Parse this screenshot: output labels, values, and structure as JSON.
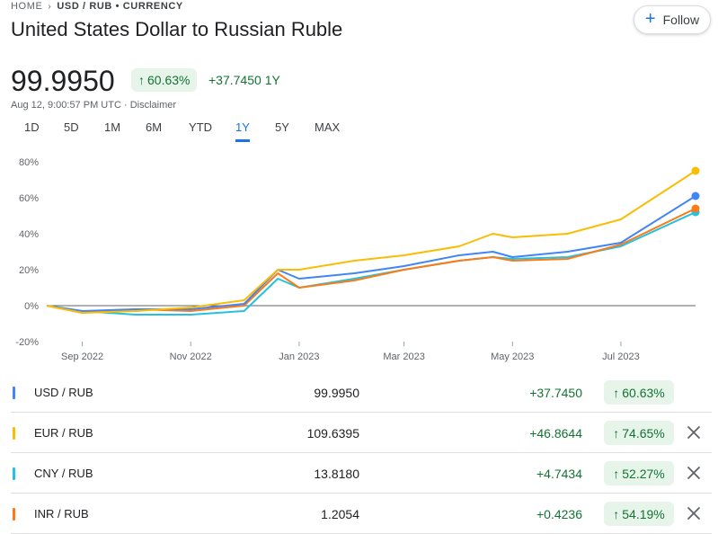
{
  "breadcrumb": {
    "home": "HOME",
    "current": "USD / RUB • CURRENCY"
  },
  "title": "United States Dollar to Russian Ruble",
  "follow_label": "Follow",
  "quote": {
    "price": "99.9950",
    "percent": "60.63%",
    "change": "+37.7450",
    "period": "1Y",
    "timestamp": "Aug 12, 9:00:57 PM UTC",
    "disclaimer": "Disclaimer"
  },
  "ranges": [
    "1D",
    "5D",
    "1M",
    "6M",
    "YTD",
    "1Y",
    "5Y",
    "MAX"
  ],
  "active_range": "1Y",
  "colors": {
    "accent": "#1a73e8",
    "positive": "#137333",
    "usd": "#4285f4",
    "eur": "#fbbc04",
    "cny": "#24c1e0",
    "inr": "#fa7b17"
  },
  "chart_data": {
    "type": "line",
    "x": [
      "Aug 12 2022",
      "Sep 1 2022",
      "Oct 1 2022",
      "Nov 1 2022",
      "Dec 1 2022",
      "Dec 20 2022",
      "Jan 1 2023",
      "Feb 1 2023",
      "Mar 1 2023",
      "Apr 1 2023",
      "Apr 20 2023",
      "May 1 2023",
      "Jun 1 2023",
      "Jul 1 2023",
      "Aug 12 2023"
    ],
    "series": [
      {
        "name": "USD / RUB",
        "values": [
          0,
          -3,
          -2,
          -2,
          1,
          20,
          15,
          18,
          22,
          28,
          30,
          27,
          30,
          35,
          61
        ]
      },
      {
        "name": "EUR / RUB",
        "values": [
          0,
          -4,
          -3,
          -1,
          3,
          20,
          20,
          25,
          28,
          33,
          40,
          38,
          40,
          48,
          75
        ]
      },
      {
        "name": "CNY / RUB",
        "values": [
          0,
          -3,
          -5,
          -5,
          -3,
          15,
          10,
          15,
          20,
          25,
          27,
          26,
          27,
          33,
          52
        ]
      },
      {
        "name": "INR / RUB",
        "values": [
          0,
          -4,
          -2,
          -3,
          0,
          18,
          10,
          14,
          20,
          25,
          27,
          25,
          26,
          34,
          54
        ]
      }
    ],
    "x_ticks": [
      "Sep 2022",
      "Nov 2022",
      "Jan 2023",
      "Mar 2023",
      "May 2023",
      "Jul 2023"
    ],
    "y_ticks": [
      "80%",
      "60%",
      "40%",
      "20%",
      "0%",
      "-20%"
    ],
    "ylim": [
      -20,
      80
    ],
    "grid": false
  },
  "rows": [
    {
      "pair": "USD / RUB",
      "value": "99.9950",
      "change": "+37.7450",
      "percent": "60.63%",
      "removable": false
    },
    {
      "pair": "EUR / RUB",
      "value": "109.6395",
      "change": "+46.8644",
      "percent": "74.65%",
      "removable": true
    },
    {
      "pair": "CNY / RUB",
      "value": "13.8180",
      "change": "+4.7434",
      "percent": "52.27%",
      "removable": true
    },
    {
      "pair": "INR / RUB",
      "value": "1.2054",
      "change": "+0.4236",
      "percent": "54.19%",
      "removable": true
    }
  ]
}
